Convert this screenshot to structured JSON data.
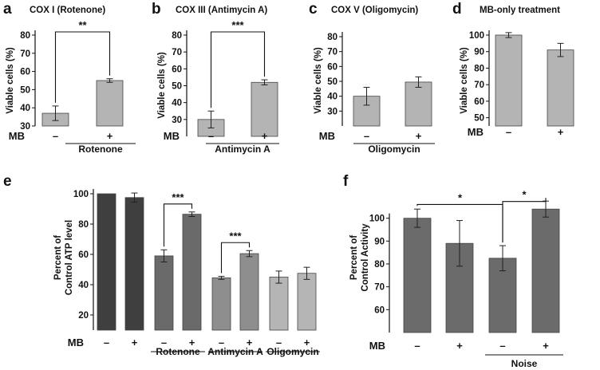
{
  "chart_data": [
    {
      "panel": "a",
      "type": "bar",
      "title": "COX I (Rotenone)",
      "ylabel": "Viable cells (%)",
      "ylim": [
        30,
        80
      ],
      "yticks": [
        30,
        40,
        50,
        60,
        70,
        80
      ],
      "row_label": "MB",
      "categories": [
        "–",
        "+"
      ],
      "group_label": "Rotenone",
      "values": [
        37,
        55
      ],
      "errors": [
        4,
        1
      ],
      "bar_color": "#b4b4b4",
      "significance": [
        {
          "from": 0,
          "to": 1,
          "label": "**"
        }
      ]
    },
    {
      "panel": "b",
      "type": "bar",
      "title": "COX III  (Antimycin A)",
      "ylabel": "Viable cells (%)",
      "ylim": [
        20,
        80
      ],
      "yticks": [
        30,
        40,
        50,
        60,
        70,
        80
      ],
      "row_label": "MB",
      "categories": [
        "–",
        "+"
      ],
      "group_label": "Antimycin A",
      "values": [
        30,
        52
      ],
      "errors": [
        5,
        1.5
      ],
      "bar_color": "#b4b4b4",
      "significance": [
        {
          "from": 0,
          "to": 1,
          "label": "***"
        }
      ]
    },
    {
      "panel": "c",
      "type": "bar",
      "title": "COX V (Oligomycin)",
      "ylabel": "Viable cells (%)",
      "ylim": [
        20,
        80
      ],
      "yticks": [
        30,
        40,
        50,
        60,
        70,
        80
      ],
      "row_label": "MB",
      "categories": [
        "–",
        "+"
      ],
      "group_label": "Oligomycin",
      "values": [
        40,
        49.5
      ],
      "errors": [
        6,
        3.5
      ],
      "bar_color": "#b4b4b4",
      "significance": []
    },
    {
      "panel": "d",
      "type": "bar",
      "title": "MB-only treatment",
      "ylabel": "Viable cells (%)",
      "ylim": [
        45,
        100
      ],
      "yticks": [
        50,
        60,
        70,
        80,
        90,
        100
      ],
      "row_label": "MB",
      "categories": [
        "–",
        "+"
      ],
      "group_label": "",
      "values": [
        100,
        91
      ],
      "errors": [
        1.5,
        4
      ],
      "bar_color": "#b4b4b4",
      "significance": []
    },
    {
      "panel": "e",
      "type": "bar",
      "title": "",
      "ylabel": "Percent of\nControl ATP level",
      "ylim": [
        10,
        100
      ],
      "yticks": [
        20,
        40,
        60,
        80,
        100
      ],
      "row_label": "MB",
      "categories": [
        "–",
        "+",
        "–",
        "+",
        "–",
        "+",
        "–",
        "+"
      ],
      "values": [
        100,
        97.5,
        59,
        86.5,
        44.5,
        60.5,
        45,
        47.5
      ],
      "errors": [
        0,
        3,
        4,
        1.5,
        1,
        2,
        4,
        4
      ],
      "bar_colors": [
        "#3f3f3f",
        "#3f3f3f",
        "#6a6a6a",
        "#6a6a6a",
        "#8e8e8e",
        "#8e8e8e",
        "#b5b5b5",
        "#b5b5b5"
      ],
      "groups": [
        {
          "label": "Rotenone",
          "start": 2,
          "end": 3
        },
        {
          "label": "Antimycin A",
          "start": 4,
          "end": 5
        },
        {
          "label": "Oligomycin",
          "start": 6,
          "end": 7
        }
      ],
      "significance": [
        {
          "from": 2,
          "to": 3,
          "label": "***"
        },
        {
          "from": 4,
          "to": 5,
          "label": "***"
        }
      ]
    },
    {
      "panel": "f",
      "type": "bar",
      "title": "",
      "ylabel": "Percent of\nControl Activity",
      "ylim": [
        50,
        110
      ],
      "yticks": [
        60,
        70,
        80,
        90,
        100
      ],
      "row_label": "MB",
      "categories": [
        "–",
        "+",
        "–",
        "+"
      ],
      "values": [
        100,
        89,
        82.5,
        104
      ],
      "errors": [
        4,
        10,
        5.5,
        3.5
      ],
      "bar_color": "#6b6b6b",
      "groups": [
        {
          "label": "Noise",
          "start": 2,
          "end": 3
        }
      ],
      "significance": [
        {
          "from": 0,
          "to": 2,
          "label": "*"
        },
        {
          "from": 2,
          "to": 3,
          "label": "*"
        }
      ]
    }
  ]
}
